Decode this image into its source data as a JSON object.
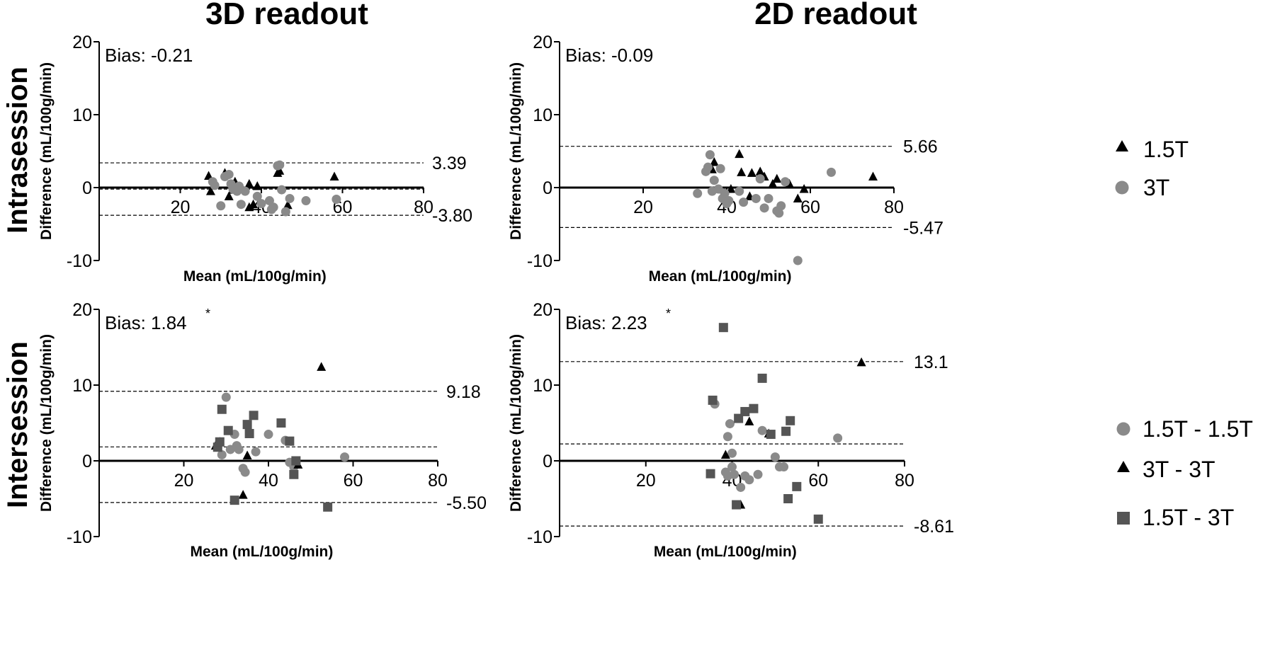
{
  "column_titles": [
    "3D readout",
    "2D readout"
  ],
  "row_titles": [
    "Intrasession",
    "Intersession"
  ],
  "legends": [
    {
      "items": [
        {
          "label": "1.5T",
          "marker": "triangle",
          "color": "#000000"
        },
        {
          "label": "3T",
          "marker": "circle",
          "color": "#8a8a8a"
        }
      ]
    },
    {
      "items": [
        {
          "label": "1.5T - 1.5T",
          "marker": "circle",
          "color": "#8a8a8a"
        },
        {
          "label": "3T - 3T",
          "marker": "triangle",
          "color": "#000000"
        },
        {
          "label": "1.5T - 3T",
          "marker": "square",
          "color": "#555555"
        }
      ]
    }
  ],
  "colors": {
    "triangle": "#000000",
    "circle": "#8a8a8a",
    "square": "#555555"
  },
  "chart_data": [
    {
      "id": "intra-3d",
      "type": "scatter",
      "xlabel": "Mean (mL/100g/min)",
      "ylabel": "Difference (mL/100g/min)",
      "xlim": [
        0,
        80
      ],
      "ylim": [
        -10,
        20
      ],
      "xticks": [
        20,
        40,
        60,
        80
      ],
      "yticks": [
        -10,
        0,
        10,
        20
      ],
      "bias_text": "Bias: -0.21",
      "bias_star": "",
      "limits": [
        {
          "value": 3.39,
          "label": "3.39"
        },
        {
          "value": -3.8,
          "label": "-3.80"
        }
      ],
      "bias_line": -0.21,
      "series": [
        {
          "name": "1.5T",
          "marker": "triangle",
          "points": [
            [
              27,
              1.6
            ],
            [
              27.5,
              -0.5
            ],
            [
              31,
              2.0
            ],
            [
              32,
              -1.2
            ],
            [
              33,
              -0.3
            ],
            [
              33.5,
              0.8
            ],
            [
              37,
              0.5
            ],
            [
              37,
              -2.7
            ],
            [
              38,
              -2.3
            ],
            [
              39,
              0.2
            ],
            [
              44,
              2.0
            ],
            [
              44.5,
              2.3
            ],
            [
              46.5,
              -2.4
            ],
            [
              58,
              1.5
            ]
          ]
        },
        {
          "name": "3T",
          "marker": "circle",
          "points": [
            [
              28,
              0.8
            ],
            [
              28.5,
              0.3
            ],
            [
              30,
              -2.5
            ],
            [
              31,
              1.5
            ],
            [
              32,
              1.8
            ],
            [
              32.5,
              0.5
            ],
            [
              33,
              -0.2
            ],
            [
              34,
              -0.5
            ],
            [
              34.5,
              0.2
            ],
            [
              35,
              -2.3
            ],
            [
              36,
              -0.5
            ],
            [
              39,
              -1.2
            ],
            [
              40,
              -2.2
            ],
            [
              42,
              -1.8
            ],
            [
              42.5,
              -3.0
            ],
            [
              43,
              -2.7
            ],
            [
              44,
              3.0
            ],
            [
              44.5,
              3.1
            ],
            [
              45,
              -0.3
            ],
            [
              46,
              -3.3
            ],
            [
              47,
              -1.5
            ],
            [
              51,
              -1.8
            ],
            [
              58.5,
              -1.6
            ]
          ]
        }
      ]
    },
    {
      "id": "intra-2d",
      "type": "scatter",
      "xlabel": "Mean (mL/100g/min)",
      "ylabel": "Difference (mL/100g/min)",
      "xlim": [
        0,
        80
      ],
      "ylim": [
        -10,
        20
      ],
      "xticks": [
        20,
        40,
        60,
        80
      ],
      "yticks": [
        -10,
        0,
        10,
        20
      ],
      "bias_text": "Bias: -0.09",
      "bias_star": "",
      "limits": [
        {
          "value": 5.66,
          "label": "5.66"
        },
        {
          "value": -5.47,
          "label": "-5.47"
        }
      ],
      "bias_line": -0.09,
      "series": [
        {
          "name": "1.5T",
          "marker": "triangle",
          "points": [
            [
              36.5,
              2.5
            ],
            [
              37,
              3.5
            ],
            [
              41,
              -0.2
            ],
            [
              43,
              4.6
            ],
            [
              43.5,
              2.1
            ],
            [
              45.5,
              -1.2
            ],
            [
              46,
              2.0
            ],
            [
              48,
              2.2
            ],
            [
              49,
              1.5
            ],
            [
              51,
              0.5
            ],
            [
              52,
              1.2
            ],
            [
              55,
              0.5
            ],
            [
              57,
              -1.5
            ],
            [
              58.5,
              -0.2
            ],
            [
              75,
              1.5
            ]
          ]
        },
        {
          "name": "3T",
          "marker": "circle",
          "points": [
            [
              33,
              -0.8
            ],
            [
              35,
              2.2
            ],
            [
              35.5,
              2.8
            ],
            [
              36,
              4.5
            ],
            [
              36.5,
              -0.5
            ],
            [
              37,
              1.0
            ],
            [
              38,
              -0.2
            ],
            [
              38.5,
              2.6
            ],
            [
              39,
              -1.5
            ],
            [
              39.5,
              -0.8
            ],
            [
              40,
              -2.2
            ],
            [
              40.5,
              -1.8
            ],
            [
              43,
              -0.5
            ],
            [
              44,
              -2.0
            ],
            [
              47,
              -1.5
            ],
            [
              48,
              1.2
            ],
            [
              49,
              -2.8
            ],
            [
              50,
              -1.5
            ],
            [
              52,
              -3.2
            ],
            [
              52.5,
              -3.5
            ],
            [
              53,
              -2.5
            ],
            [
              54,
              0.8
            ],
            [
              57,
              -10.0
            ],
            [
              65,
              2.1
            ]
          ]
        }
      ]
    },
    {
      "id": "inter-3d",
      "type": "scatter",
      "xlabel": "Mean (mL/100g/min)",
      "ylabel": "Difference (mL/100g/min)",
      "xlim": [
        0,
        80
      ],
      "ylim": [
        -10,
        20
      ],
      "xticks": [
        20,
        40,
        60,
        80
      ],
      "yticks": [
        -10,
        0,
        10,
        20
      ],
      "bias_text": "Bias: 1.84",
      "bias_star": "*",
      "limits": [
        {
          "value": 9.18,
          "label": "9.18"
        },
        {
          "value": -5.5,
          "label": "-5.50"
        }
      ],
      "bias_line": 1.84,
      "series": [
        {
          "name": "1.5T - 1.5T",
          "marker": "circle",
          "points": [
            [
              29,
              0.8
            ],
            [
              30,
              8.4
            ],
            [
              31,
              1.5
            ],
            [
              32,
              3.5
            ],
            [
              32.5,
              2.0
            ],
            [
              33,
              1.5
            ],
            [
              34,
              -1.0
            ],
            [
              34.5,
              -1.5
            ],
            [
              37,
              1.2
            ],
            [
              40,
              3.5
            ],
            [
              44,
              2.7
            ],
            [
              45,
              -0.2
            ],
            [
              46,
              -0.8
            ],
            [
              58,
              0.5
            ]
          ]
        },
        {
          "name": "3T - 3T",
          "marker": "triangle",
          "points": [
            [
              27.5,
              2.0
            ],
            [
              28.5,
              2.5
            ],
            [
              34,
              -4.5
            ],
            [
              35,
              0.7
            ],
            [
              47,
              -0.5
            ],
            [
              52.5,
              12.4
            ]
          ]
        },
        {
          "name": "1.5T - 3T",
          "marker": "square",
          "points": [
            [
              28,
              1.8
            ],
            [
              28.5,
              2.5
            ],
            [
              29,
              6.8
            ],
            [
              30.5,
              4.0
            ],
            [
              32,
              -5.2
            ],
            [
              35,
              4.8
            ],
            [
              35.5,
              3.6
            ],
            [
              36.5,
              6.0
            ],
            [
              43,
              5.0
            ],
            [
              45,
              2.6
            ],
            [
              46,
              -1.8
            ],
            [
              46.5,
              0.0
            ],
            [
              54,
              -6.1
            ]
          ]
        }
      ]
    },
    {
      "id": "inter-2d",
      "type": "scatter",
      "xlabel": "Mean (mL/100g/min)",
      "ylabel": "Difference (mL/100g/min)",
      "xlim": [
        0,
        80
      ],
      "ylim": [
        -10,
        20
      ],
      "xticks": [
        20,
        40,
        60,
        80
      ],
      "yticks": [
        -10,
        0,
        10,
        20
      ],
      "bias_text": "Bias: 2.23",
      "bias_star": "*",
      "limits": [
        {
          "value": 13.1,
          "label": "13.1"
        },
        {
          "value": -8.61,
          "label": "-8.61"
        }
      ],
      "bias_line": 2.23,
      "series": [
        {
          "name": "1.5T - 1.5T",
          "marker": "circle",
          "points": [
            [
              36,
              7.5
            ],
            [
              38.5,
              -1.5
            ],
            [
              39,
              3.2
            ],
            [
              39,
              -2.0
            ],
            [
              39.5,
              4.9
            ],
            [
              40,
              1.0
            ],
            [
              40,
              -0.8
            ],
            [
              40.5,
              -1.8
            ],
            [
              42,
              -3.5
            ],
            [
              43,
              -2.0
            ],
            [
              44,
              -2.5
            ],
            [
              46,
              -1.8
            ],
            [
              47,
              4.0
            ],
            [
              50,
              0.5
            ],
            [
              51,
              -0.8
            ],
            [
              52,
              -0.8
            ],
            [
              64.5,
              3.0
            ]
          ]
        },
        {
          "name": "3T - 3T",
          "marker": "triangle",
          "points": [
            [
              38.5,
              0.8
            ],
            [
              42,
              -5.8
            ],
            [
              44,
              5.2
            ],
            [
              48.5,
              3.6
            ],
            [
              70,
              13.0
            ]
          ]
        },
        {
          "name": "1.5T - 3T",
          "marker": "square",
          "points": [
            [
              35,
              -1.7
            ],
            [
              35.5,
              8.0
            ],
            [
              38,
              17.6
            ],
            [
              41,
              -5.8
            ],
            [
              41.5,
              5.6
            ],
            [
              43,
              6.5
            ],
            [
              45,
              6.9
            ],
            [
              47,
              10.9
            ],
            [
              49,
              3.5
            ],
            [
              52.5,
              3.9
            ],
            [
              53,
              -5.0
            ],
            [
              53.5,
              5.3
            ],
            [
              55,
              -3.4
            ],
            [
              60,
              -7.7
            ]
          ]
        }
      ]
    }
  ]
}
